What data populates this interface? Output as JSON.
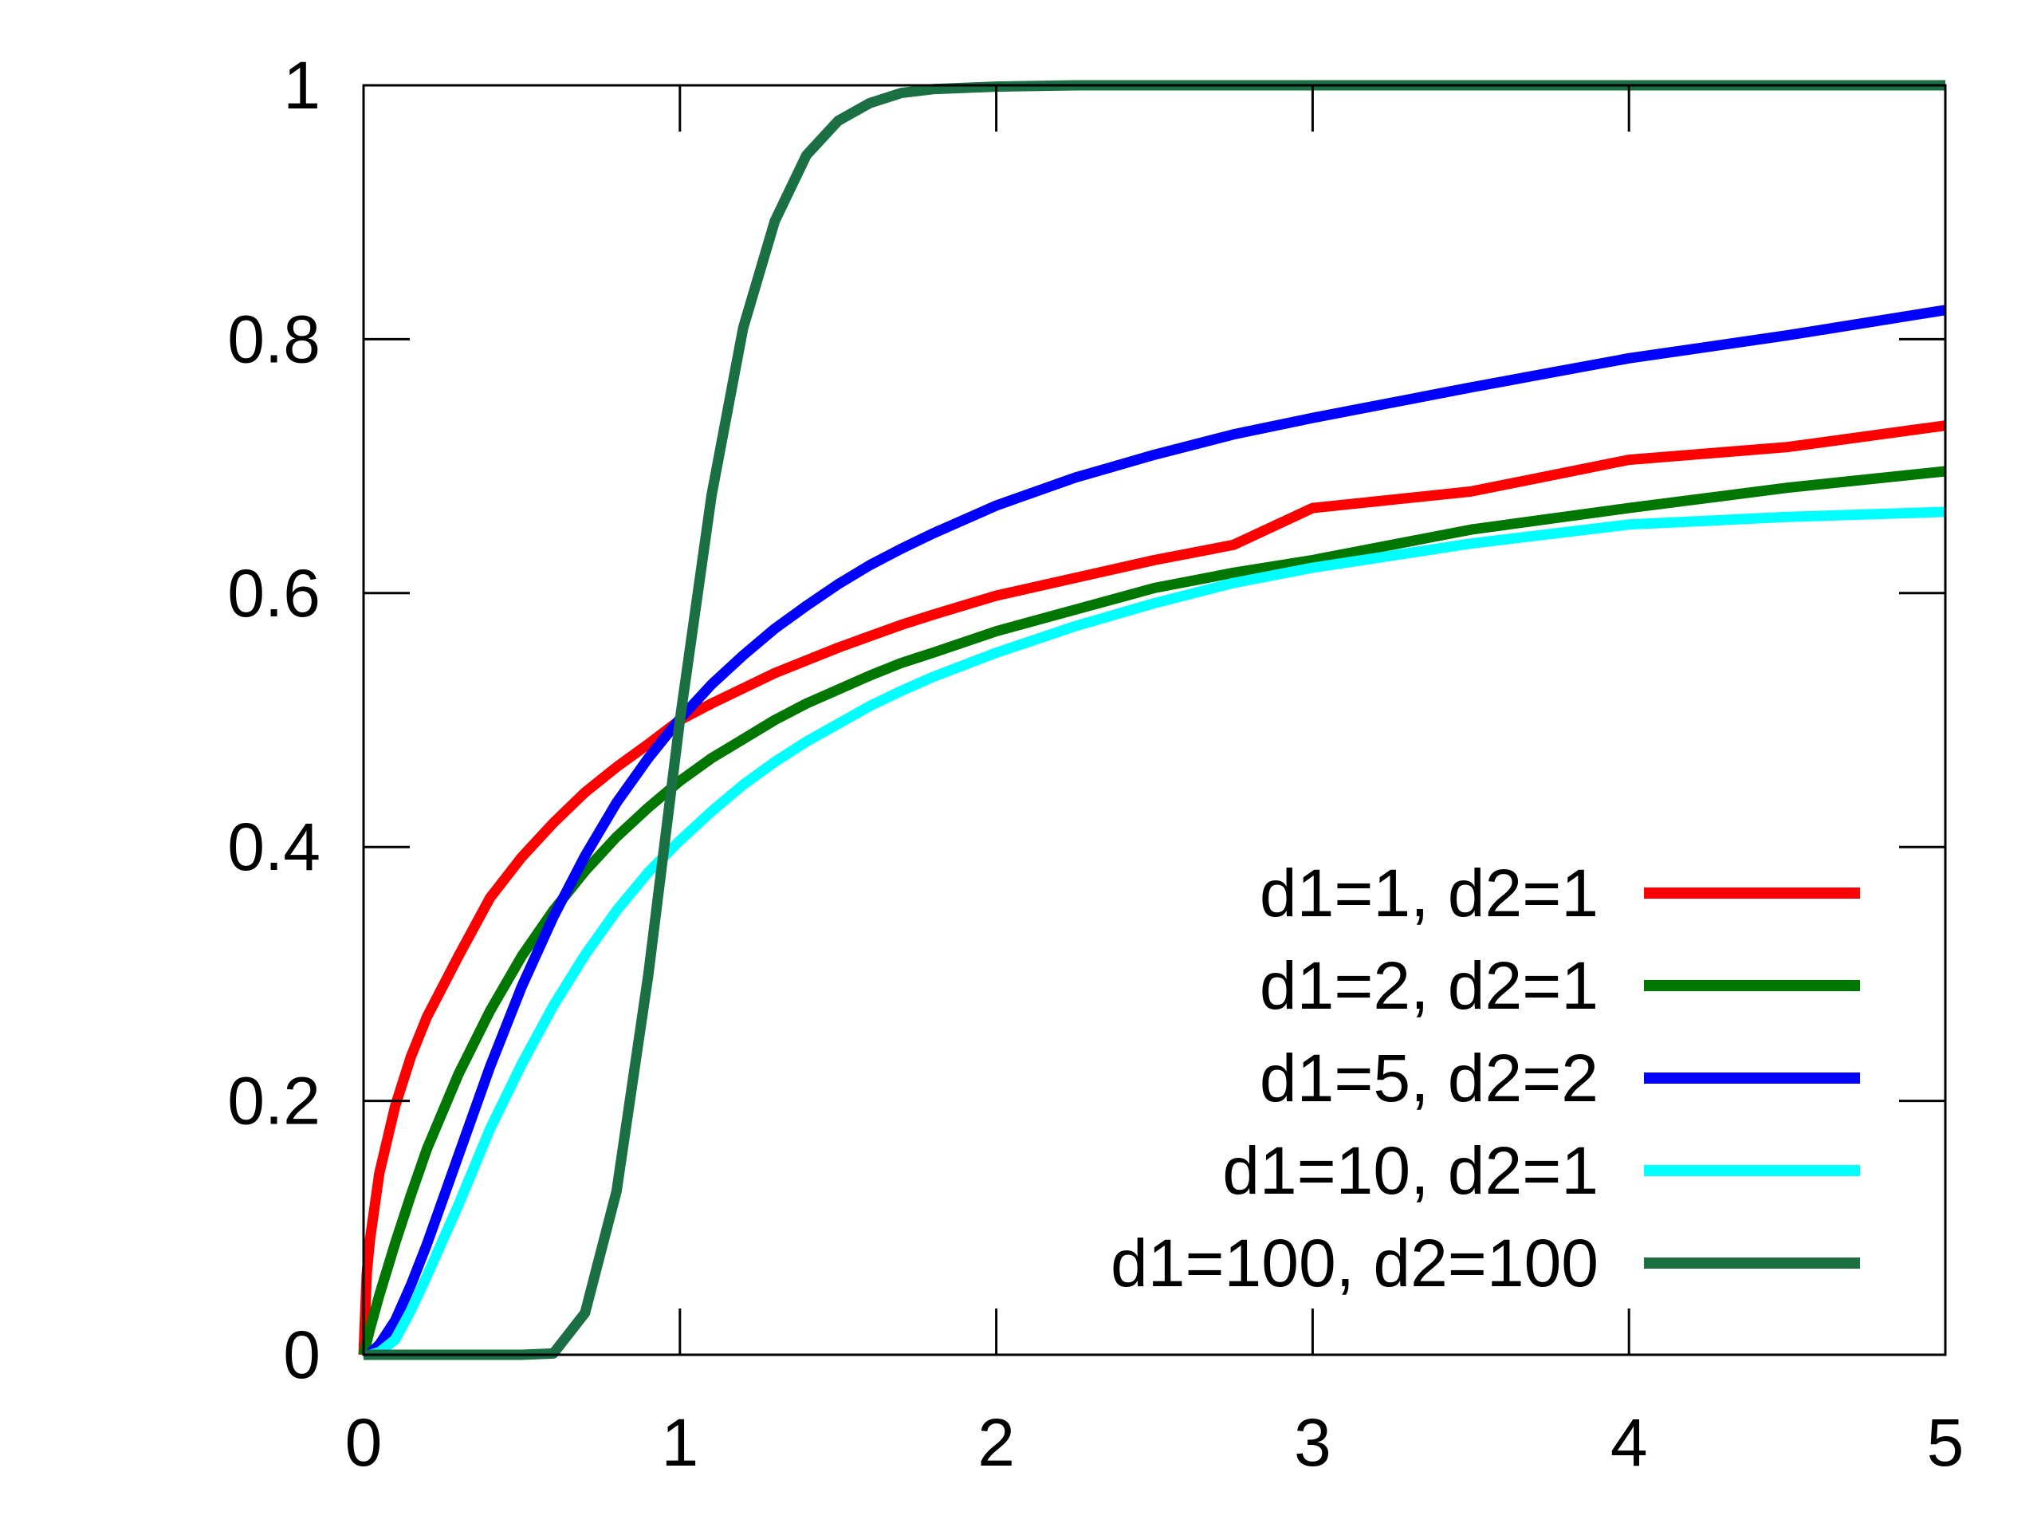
{
  "chart_data": {
    "type": "line",
    "title": "",
    "xlabel": "",
    "ylabel": "",
    "xlim": [
      0,
      5
    ],
    "ylim": [
      0,
      1
    ],
    "x_ticks": [
      "0",
      "1",
      "2",
      "3",
      "4",
      "5"
    ],
    "y_ticks": [
      "0",
      "0.2",
      "0.4",
      "0.6",
      "0.8",
      "1"
    ],
    "x_tick_values": [
      0,
      1,
      2,
      3,
      4,
      5
    ],
    "y_tick_values": [
      0,
      0.2,
      0.4,
      0.6,
      0.8,
      1
    ],
    "grid": false,
    "legend_position": "bottom-right",
    "x": [
      0,
      0.01,
      0.02,
      0.05,
      0.1,
      0.15,
      0.2,
      0.3,
      0.4,
      0.5,
      0.6,
      0.7,
      0.8,
      0.9,
      1.0,
      1.1,
      1.2,
      1.3,
      1.4,
      1.5,
      1.6,
      1.7,
      1.8,
      2.0,
      2.25,
      2.5,
      2.75,
      3.0,
      3.5,
      4.0,
      4.5,
      5.0
    ],
    "series": [
      {
        "name": "d1=1, d2=1",
        "color": "#ff0000",
        "values": [
          0,
          0.064,
          0.09,
          0.143,
          0.196,
          0.235,
          0.266,
          0.314,
          0.36,
          0.392,
          0.419,
          0.443,
          0.463,
          0.481,
          0.5,
          0.513,
          0.525,
          0.537,
          0.547,
          0.557,
          0.566,
          0.575,
          0.583,
          0.598,
          0.612,
          0.626,
          0.638,
          0.667,
          0.68,
          0.705,
          0.715,
          0.732
        ]
      },
      {
        "name": "d1=2, d2=1",
        "color": "#007700",
        "values": [
          0,
          0.01,
          0.02,
          0.047,
          0.088,
          0.126,
          0.162,
          0.221,
          0.271,
          0.314,
          0.35,
          0.381,
          0.408,
          0.431,
          0.452,
          0.47,
          0.485,
          0.5,
          0.513,
          0.524,
          0.535,
          0.545,
          0.553,
          0.57,
          0.587,
          0.604,
          0.616,
          0.626,
          0.65,
          0.667,
          0.683,
          0.696
        ]
      },
      {
        "name": "d1=5, d2=2",
        "color": "#0000ff",
        "values": [
          0,
          0.0,
          0.001,
          0.008,
          0.027,
          0.055,
          0.087,
          0.157,
          0.227,
          0.29,
          0.345,
          0.393,
          0.435,
          0.47,
          0.501,
          0.528,
          0.551,
          0.572,
          0.59,
          0.607,
          0.622,
          0.635,
          0.647,
          0.669,
          0.691,
          0.709,
          0.725,
          0.738,
          0.762,
          0.785,
          0.803,
          0.823
        ]
      },
      {
        "name": "d1=10, d2=1",
        "color": "#00ffff",
        "values": [
          0,
          0.0,
          0.0,
          0.002,
          0.012,
          0.035,
          0.062,
          0.118,
          0.178,
          0.229,
          0.275,
          0.315,
          0.35,
          0.38,
          0.405,
          0.428,
          0.449,
          0.467,
          0.483,
          0.497,
          0.511,
          0.523,
          0.534,
          0.553,
          0.574,
          0.592,
          0.608,
          0.62,
          0.639,
          0.654,
          0.66,
          0.664
        ]
      },
      {
        "name": "d1=100, d2=100",
        "color": "#1a7042",
        "values": [
          0,
          0.0,
          0.0,
          0.0,
          0.0,
          0.0,
          0.0,
          0.0,
          0.0,
          0.0,
          0.001,
          0.033,
          0.129,
          0.299,
          0.5,
          0.677,
          0.809,
          0.893,
          0.945,
          0.972,
          0.986,
          0.994,
          0.997,
          0.999,
          1.0,
          1.0,
          1.0,
          1.0,
          1.0,
          1.0,
          1.0,
          1.0
        ]
      }
    ]
  }
}
